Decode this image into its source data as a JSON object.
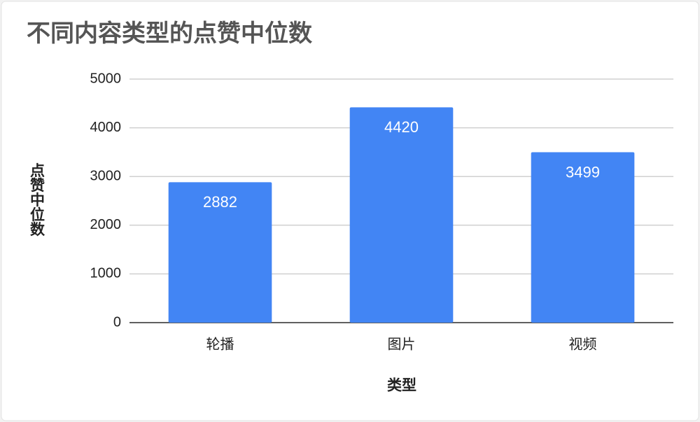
{
  "chart_data": {
    "type": "bar",
    "title": "不同内容类型的点赞中位数",
    "x_label": "类型",
    "y_label": "点赞中位数",
    "categories": [
      "轮播",
      "图片",
      "视频"
    ],
    "values": [
      2882,
      4420,
      3499
    ],
    "value_labels": [
      "2882",
      "4420",
      "3499"
    ],
    "color": "#4285f4",
    "ylim": [
      0,
      5000
    ],
    "yticks": [
      0,
      1000,
      2000,
      3000,
      4000,
      5000
    ],
    "grid": true
  }
}
